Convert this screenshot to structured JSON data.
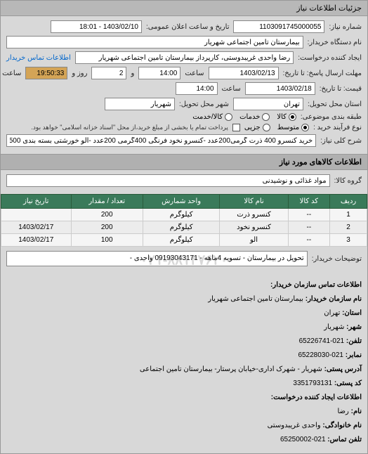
{
  "header": {
    "title": "جزئیات اطلاعات نیاز"
  },
  "form": {
    "request_number_label": "شماره نیاز:",
    "request_number": "1103091745000055",
    "announce_date_label": "تاریخ و ساعت اعلان عمومی:",
    "announce_date": "1403/02/10 - 18:01",
    "buyer_name_label": "نام دستگاه خریدار:",
    "buyer_name": "بیمارستان تامین اجتماعی شهریار",
    "creator_label": "ایجاد کننده درخواست:",
    "creator": "رضا واحدی غریبدوستی، کارپرداز بیمارستان تامین اجتماعی شهریار",
    "contact_link": "اطلاعات تماس خریدار",
    "deadline_label": "مهلت ارسال پاسخ: تا تاریخ:",
    "deadline_date": "1403/02/13",
    "time_label": "ساعت",
    "deadline_time": "14:00",
    "days_label": "و",
    "days_value": "2",
    "days_suffix": "روز و",
    "remaining_time": "19:50:33",
    "remaining_suffix": "ساعت باقی مانده",
    "quote_until_label": "قیمت: تا تاریخ:",
    "quote_date": "1403/02/18",
    "quote_time": "14:00",
    "province_label": "استان محل تحویل:",
    "province": "تهران",
    "city_label": "شهر محل تحویل:",
    "city": "شهریار",
    "category_label": "طبقه بندی موضوعی:",
    "cat_goods": "کالا",
    "cat_services": "خدمات",
    "cat_both": "کالا/خدمت",
    "purchase_type_label": "نوع فرآیند خرید :",
    "pt_small": "متوسط",
    "pt_partial": "جزیی",
    "payment_note_label": "",
    "payment_note": "پرداخت تمام یا بخشی از مبلغ خرید،از محل \"اسناد خزانه اسلامی\" خواهد بود.",
    "desc_label": "شرح کلی نیاز:",
    "desc": "خرید کنسرو 400 ذرت گرمی200عدد -کنسرو نخود فرنگی 400گرمی 200عدد -آلو خورشتی بسته بندی 500گرمی 50کیلو"
  },
  "goods_section": {
    "title": "اطلاعات کالاهای مورد نیاز",
    "group_label": "گروه کالا:",
    "group_value": "مواد غذائی و نوشیدنی"
  },
  "table": {
    "headers": [
      "ردیف",
      "کد کالا",
      "نام کالا",
      "واحد شمارش",
      "تعداد / مقدار",
      "تاریخ نیاز"
    ],
    "rows": [
      [
        "1",
        "--",
        "کنسرو ذرت",
        "کیلوگرم",
        "200",
        ""
      ],
      [
        "2",
        "--",
        "کنسرو نخود",
        "کیلوگرم",
        "200",
        "1403/02/17"
      ],
      [
        "3",
        "--",
        "الو",
        "کیلوگرم",
        "100",
        "1403/02/17"
      ]
    ]
  },
  "buyer_notes": {
    "label": "توضیحات خریدار:",
    "value": "تحویل در بیمارستان - تسویه 4ماهه - 09193043171 واحدی -"
  },
  "watermark": "۰۲۱-۸۸۱۴۷۶۲۰",
  "contact_info": {
    "title": "اطلاعات تماس سازمان خریدار:",
    "org_label": "نام سازمان خریدار:",
    "org": "بیمارستان تامین اجتماعی شهریار",
    "province_label": "استان:",
    "province": "تهران",
    "city_label": "شهر:",
    "شهریار": "شهریار",
    "city": "شهریار",
    "phone_label": "تلفن:",
    "phone": "021-65226741",
    "fax_label": "نمابر:",
    "fax": "021-65228030",
    "address_label": "آدرس پستی:",
    "address": "شهریار - شهرک اداری-خیابان پرستار- بیمارستان تامین اجتماعی",
    "postal_label": "کد پستی:",
    "postal": "3351793131",
    "creator_title": "اطلاعات ایجاد کننده درخواست:",
    "name_label": "نام:",
    "name": "رضا",
    "family_label": "نام خانوادگی:",
    "family": "واحدی غریبدوستی",
    "cphone_label": "تلفن تماس:",
    "cphone": "021-65250002"
  }
}
